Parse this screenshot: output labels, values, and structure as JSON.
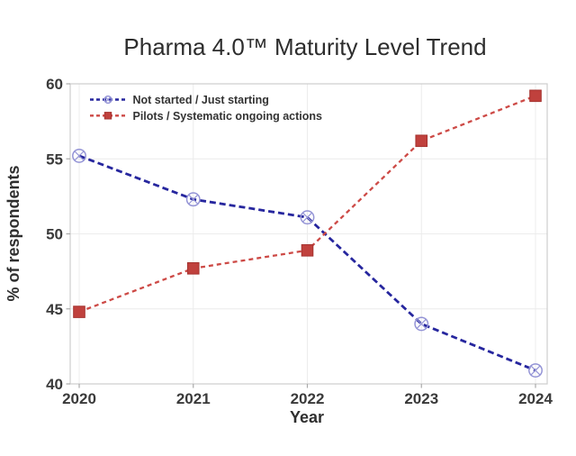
{
  "chart_data": {
    "type": "line",
    "title": "Pharma 4.0™ Maturity Level Trend",
    "xlabel": "Year",
    "ylabel": "% of respondents",
    "x": [
      2020,
      2021,
      2022,
      2023,
      2024
    ],
    "ylim": [
      40,
      60
    ],
    "yticks": [
      40,
      45,
      50,
      55,
      60
    ],
    "grid": true,
    "legend_position": "top-left",
    "series": [
      {
        "name": "Not started / Just starting",
        "values": [
          55.2,
          52.3,
          51.1,
          44.0,
          40.9
        ],
        "color": "#26269e",
        "marker": "circle-x",
        "marker_color": "#9494d6",
        "dash": "7 4",
        "line_width": 2.8
      },
      {
        "name": "Pilots / Systematic ongoing actions",
        "values": [
          44.8,
          47.7,
          48.9,
          56.2,
          59.2
        ],
        "color": "#cd4a46",
        "marker": "square",
        "marker_color": "#c0413d",
        "marker_edge": "#a5322f",
        "dash": "5 4",
        "line_width": 2.3
      }
    ],
    "colors": {
      "background": "#ffffff",
      "grid": "#ececec",
      "spine": "#cdcdcd",
      "tick": "#a9a9a9",
      "title_text": "#2d2d2d",
      "label_text": "#2f2f2f",
      "tick_text": "#3a3a3a",
      "legend_text": "#333333"
    }
  }
}
